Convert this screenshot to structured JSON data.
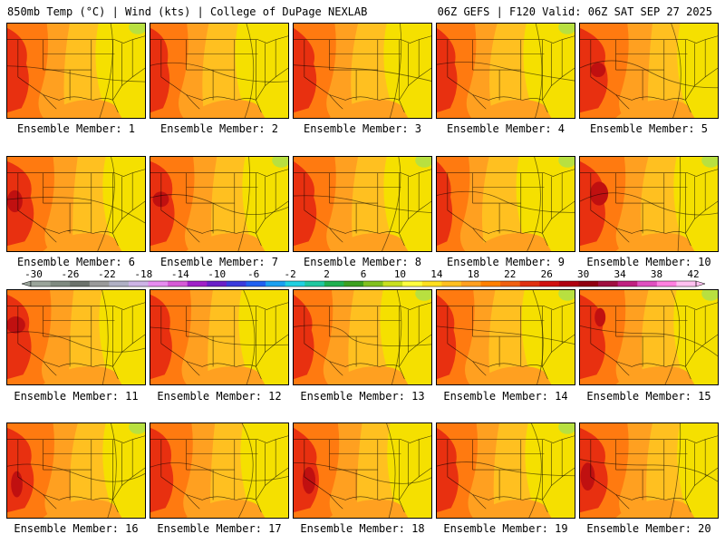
{
  "header": {
    "left": "850mb Temp (°C) | Wind (kts) | College of DuPage NEXLAB",
    "right": "06Z GEFS | F120 Valid: 06Z SAT SEP 27 2025"
  },
  "member_label_prefix": "Ensemble Member:",
  "members": [
    {
      "id": 1,
      "label": "Ensemble Member: 1",
      "heat": 0.55
    },
    {
      "id": 2,
      "label": "Ensemble Member: 2",
      "heat": 0.45
    },
    {
      "id": 3,
      "label": "Ensemble Member: 3",
      "heat": 0.6
    },
    {
      "id": 4,
      "label": "Ensemble Member: 4",
      "heat": 0.5
    },
    {
      "id": 5,
      "label": "Ensemble Member: 5",
      "heat": 0.8
    },
    {
      "id": 6,
      "label": "Ensemble Member: 6",
      "heat": 0.75
    },
    {
      "id": 7,
      "label": "Ensemble Member: 7",
      "heat": 0.65
    },
    {
      "id": 8,
      "label": "Ensemble Member: 8",
      "heat": 0.6
    },
    {
      "id": 9,
      "label": "Ensemble Member: 9",
      "heat": 0.3
    },
    {
      "id": 10,
      "label": "Ensemble Member: 10",
      "heat": 0.7
    },
    {
      "id": 11,
      "label": "Ensemble Member: 11",
      "heat": 0.65
    },
    {
      "id": 12,
      "label": "Ensemble Member: 12",
      "heat": 0.55
    },
    {
      "id": 13,
      "label": "Ensemble Member: 13",
      "heat": 0.5
    },
    {
      "id": 14,
      "label": "Ensemble Member: 14",
      "heat": 0.45
    },
    {
      "id": 15,
      "label": "Ensemble Member: 15",
      "heat": 0.7
    },
    {
      "id": 16,
      "label": "Ensemble Member: 16",
      "heat": 0.75
    },
    {
      "id": 17,
      "label": "Ensemble Member: 17",
      "heat": 0.6
    },
    {
      "id": 18,
      "label": "Ensemble Member: 18",
      "heat": 0.7
    },
    {
      "id": 19,
      "label": "Ensemble Member: 19",
      "heat": 0.55
    },
    {
      "id": 20,
      "label": "Ensemble Member: 20",
      "heat": 0.8
    }
  ],
  "colorbar": {
    "tick_labels": [
      "-30",
      "-26",
      "-22",
      "-18",
      "-14",
      "-10",
      "-6",
      "-2",
      "2",
      "6",
      "10",
      "14",
      "18",
      "22",
      "26",
      "30",
      "34",
      "38",
      "42"
    ],
    "colors": [
      "#9aa49a",
      "#7f8a80",
      "#6c726c",
      "#9a9a9a",
      "#b0b0c4",
      "#cdb4e6",
      "#e68cf0",
      "#d65ad6",
      "#a020c8",
      "#6a1fc8",
      "#3a3adc",
      "#2060f0",
      "#1aa0f0",
      "#20d0e0",
      "#20c8a0",
      "#20b050",
      "#3ca020",
      "#80c020",
      "#c8e020",
      "#ffff40",
      "#ffe020",
      "#ffc020",
      "#ffa020",
      "#ff8000",
      "#f06010",
      "#e03010",
      "#d01010",
      "#b00010",
      "#900010",
      "#a01040",
      "#c02080",
      "#e050c0",
      "#ff80e0",
      "#ffc0f0"
    ]
  },
  "palette": {
    "yellow": "#f5e000",
    "gold": "#ffc020",
    "orange": "#ffa020",
    "dark_orange": "#ff7a10",
    "red": "#e83010",
    "dark_red": "#c01010",
    "green": "#b8e040"
  }
}
